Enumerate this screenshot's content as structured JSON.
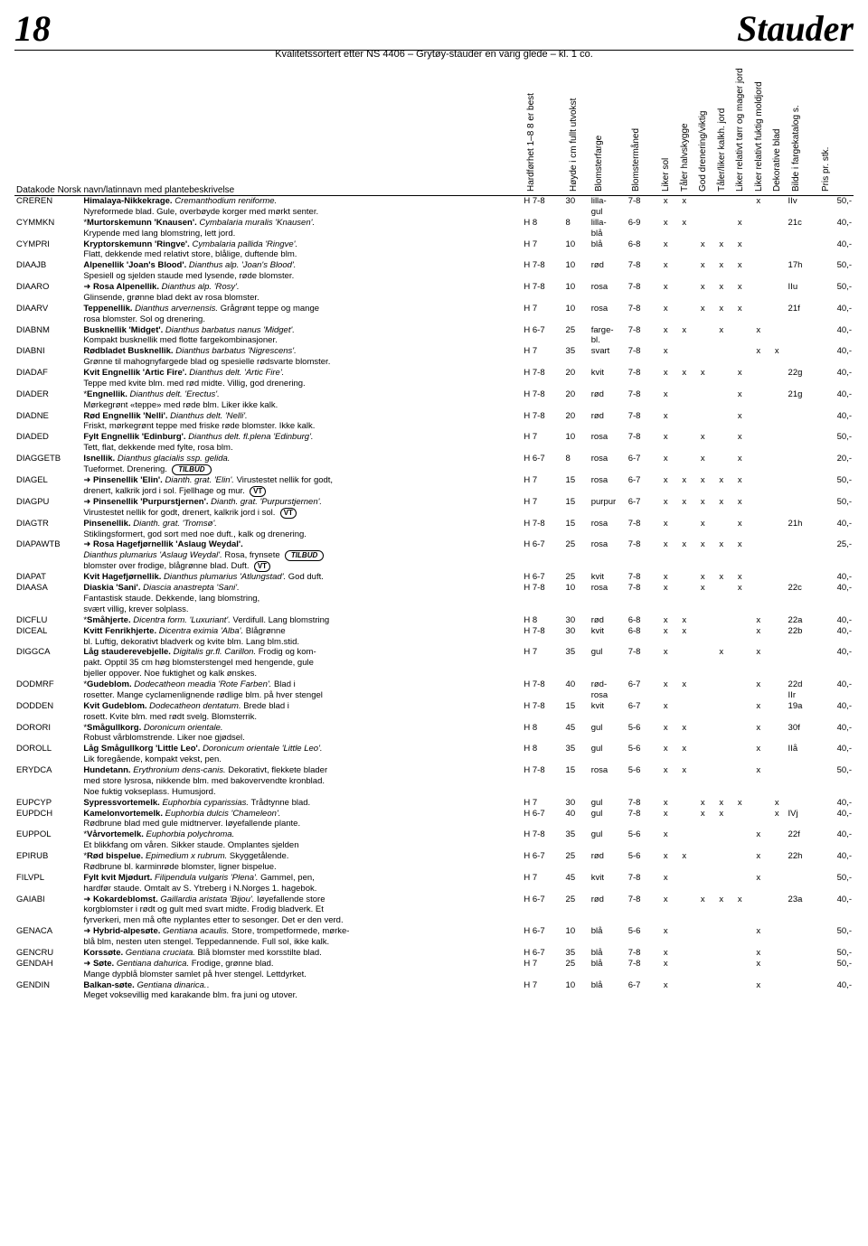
{
  "page_number": "18",
  "title": "Stauder",
  "subtitle": "Kvalitetssortert etter NS 4406 – Grytøy-stauder en varig glede – kl. 1 co.",
  "row_header_label": "Datakode   Norsk navn/latinnavn med plantebeskrivelse",
  "column_headers": [
    "Hardførhet 1–8\n8 er best",
    "Høyde i cm fullt\nutvokst",
    "Blomsterfarge",
    "Blomstermåned",
    "Liker sol",
    "Tåler halvskygge",
    "God drenering/viktig",
    "Tåler/liker kalkh. jord",
    "Liker relativt tørr og\nmager jord",
    "Liker relativt\nfuktig moldjord",
    "Dekorative blad",
    "Bilde i fargekatalog s.",
    "Pris pr. stk."
  ],
  "rows": [
    {
      "code": "CREREN",
      "desc": "<b>Himalaya-Nikkekrage.</b> <i>Cremanthodium reniforme.</i><br>Nyreformede blad. Gule, overbøyde korger med mørkt senter.",
      "h": "H 7-8",
      "ht": "30",
      "clr": "lilla-\ngul",
      "mon": "7-8",
      "x": [
        "x",
        "x",
        "",
        "",
        "",
        "x",
        "",
        ""
      ],
      "img": "IIv",
      "pr": "50,-"
    },
    {
      "code": "CYMMKN",
      "desc": "*<b>Murtorskemunn 'Knausen'.</b> <i>Cymbalaria muralis 'Knausen'.</i><br>Krypende med lang blomstring, lett jord.",
      "h": "H 8",
      "ht": "8",
      "clr": "lilla-\nblå",
      "mon": "6-9",
      "x": [
        "x",
        "x",
        "",
        "",
        "x",
        "",
        "",
        ""
      ],
      "img": "21c",
      "pr": "40,-"
    },
    {
      "code": "CYMPRI",
      "desc": "<b>Kryptorskemunn 'Ringve'.</b> <i>Cymbalaria pallida 'Ringve'.</i><br>Flatt, dekkende med relativt store, blålige, duftende blm.",
      "h": "H 7",
      "ht": "10",
      "clr": "blå",
      "mon": "6-8",
      "x": [
        "x",
        "",
        "x",
        "x",
        "x",
        "",
        "",
        ""
      ],
      "img": "",
      "pr": "40,-"
    },
    {
      "code": "DIAAJB",
      "desc": "<b>Alpenellik 'Joan's Blood'.</b> <i>Dianthus alp. 'Joan's Blood'.</i><br>Spesiell og sjelden staude med lysende, røde blomster.",
      "h": "H 7-8",
      "ht": "10",
      "clr": "rød",
      "mon": "7-8",
      "x": [
        "x",
        "",
        "x",
        "x",
        "x",
        "",
        "",
        ""
      ],
      "img": "17h",
      "pr": "50,-"
    },
    {
      "code": "DIAARO",
      "desc": "➜ <b>Rosa Alpenellik.</b> <i>Dianthus alp. 'Rosy'.</i><br>Glinsende, grønne blad dekt av rosa blomster.",
      "h": "H 7-8",
      "ht": "10",
      "clr": "rosa",
      "mon": "7-8",
      "x": [
        "x",
        "",
        "x",
        "x",
        "x",
        "",
        "",
        ""
      ],
      "img": "IIu",
      "pr": "50,-"
    },
    {
      "code": "DIAARV",
      "desc": "<b>Teppenellik.</b> <i>Dianthus arvernensis.</i> Grågrønt teppe og mange<br>rosa blomster. Sol og drenering.",
      "h": "H 7",
      "ht": "10",
      "clr": "rosa",
      "mon": "7-8",
      "x": [
        "x",
        "",
        "x",
        "x",
        "x",
        "",
        "",
        ""
      ],
      "img": "21f",
      "pr": "40,-"
    },
    {
      "code": "DIABNM",
      "desc": "<b>Busknellik 'Midget'.</b> <i>Dianthus barbatus nanus 'Midget'.</i><br>Kompakt busknellik med flotte fargekombinasjoner.",
      "h": "H 6-7",
      "ht": "25",
      "clr": "farge-\nbl.",
      "mon": "7-8",
      "x": [
        "x",
        "x",
        "",
        "x",
        "",
        "x",
        "",
        ""
      ],
      "img": "",
      "pr": "40,-"
    },
    {
      "code": "DIABNI",
      "desc": "<b>Rødbladet Busknellik.</b> <i>Dianthus barbatus 'Nigrescens'.</i><br>Grønne til mahognyfargede blad og spesielle rødsvarte blomster.",
      "h": "H 7",
      "ht": "35",
      "clr": "svart",
      "mon": "7-8",
      "x": [
        "x",
        "",
        "",
        "",
        "",
        "x",
        "x",
        ""
      ],
      "img": "",
      "pr": "40,-"
    },
    {
      "code": "DIADAF",
      "desc": "<b>Kvit Engnellik 'Artic Fire'.</b> <i>Dianthus delt. 'Artic Fire'.</i><br>Teppe med kvite blm. med rød midte. Villig, god drenering.",
      "h": "H 7-8",
      "ht": "20",
      "clr": "kvit",
      "mon": "7-8",
      "x": [
        "x",
        "x",
        "x",
        "",
        "x",
        "",
        "",
        ""
      ],
      "img": "22g",
      "pr": "40,-"
    },
    {
      "code": "DIADER",
      "desc": "*<b>Engnellik.</b> <i>Dianthus delt. 'Erectus'.</i><br>Mørkegrønt «teppe» med røde blm. Liker ikke kalk.",
      "h": "H 7-8",
      "ht": "20",
      "clr": "rød",
      "mon": "7-8",
      "x": [
        "x",
        "",
        "",
        "",
        "x",
        "",
        "",
        ""
      ],
      "img": "21g",
      "pr": "40,-"
    },
    {
      "code": "DIADNE",
      "desc": "<b>Rød Engnellik 'Nelli'.</b> <i>Dianthus delt. 'Nelli'.</i><br>Friskt, mørkegrønt teppe med friske røde blomster. Ikke kalk.",
      "h": "H 7-8",
      "ht": "20",
      "clr": "rød",
      "mon": "7-8",
      "x": [
        "x",
        "",
        "",
        "",
        "x",
        "",
        "",
        ""
      ],
      "img": "",
      "pr": "40,-"
    },
    {
      "code": "DIADED",
      "desc": "<b>Fylt Engnellik 'Edinburg'.</b> <i>Dianthus delt. fl.plena 'Edinburg'.</i><br>Tett, flat, dekkende med fylte, rosa blm.",
      "h": "H 7",
      "ht": "10",
      "clr": "rosa",
      "mon": "7-8",
      "x": [
        "x",
        "",
        "x",
        "",
        "x",
        "",
        "",
        ""
      ],
      "img": "",
      "pr": "50,-"
    },
    {
      "code": "DIAGGETB",
      "desc": "<b>Isnellik.</b> <i>Dianthus glacialis ssp. gelida.</i><br>Tueformet. Drenering. &nbsp;<span class='badge'>TILBUD</span>",
      "h": "H 6-7",
      "ht": "8",
      "clr": "rosa",
      "mon": "6-7",
      "x": [
        "x",
        "",
        "x",
        "",
        "x",
        "",
        "",
        ""
      ],
      "img": "",
      "pr": "20,-"
    },
    {
      "code": "DIAGEL",
      "desc": "➜ <b>Pinsenellik 'Elin'.</b> <i>Dianth. grat. 'Elin'.</i> Virustestet nellik for godt,<br>drenert, kalkrik jord i sol. Fjellhage og mur. &nbsp;<span class='vt'>VT</span>",
      "h": "H 7",
      "ht": "15",
      "clr": "rosa",
      "mon": "6-7",
      "x": [
        "x",
        "x",
        "x",
        "x",
        "x",
        "",
        "",
        ""
      ],
      "img": "",
      "pr": "50,-"
    },
    {
      "code": "DIAGPU",
      "desc": "➜ <b>Pinsenellik 'Purpurstjernen'.</b> <i>Dianth. grat. 'Purpurstjernen'.</i><br>Virustestet nellik for godt, drenert, kalkrik jord i sol. &nbsp;<span class='vt'>VT</span>",
      "h": "H 7",
      "ht": "15",
      "clr": "purpur",
      "mon": "6-7",
      "x": [
        "x",
        "x",
        "x",
        "x",
        "x",
        "",
        "",
        ""
      ],
      "img": "",
      "pr": "50,-"
    },
    {
      "code": "DIAGTR",
      "desc": "<b>Pinsenellik.</b> <i>Dianth. grat. 'Tromsø'.</i><br>Stiklingsformert, god sort med noe duft., kalk og drenering.",
      "h": "H 7-8",
      "ht": "15",
      "clr": "rosa",
      "mon": "7-8",
      "x": [
        "x",
        "",
        "x",
        "",
        "x",
        "",
        "",
        ""
      ],
      "img": "21h",
      "pr": "40,-"
    },
    {
      "code": "DIAPAWTB",
      "desc": "➜ <b>Rosa Hagefjørnellik 'Aslaug Weydal'.</b><br><i>Dianthus plumarius 'Aslaug Weydal'.</i> Rosa, frynsete &nbsp;<span class='badge'>TILBUD</span><br>blomster over frodige, blågrønne blad. Duft. &nbsp;<span class='vt'>VT</span>",
      "h": "H 6-7",
      "ht": "25",
      "clr": "rosa",
      "mon": "7-8",
      "x": [
        "x",
        "x",
        "x",
        "x",
        "x",
        "",
        "",
        ""
      ],
      "img": "",
      "pr": "25,-"
    },
    {
      "code": "DIAPAT",
      "desc": "<b>Kvit Hagefjørnellik.</b> <i>Dianthus plumarius 'Atlungstad'.</i> God duft.",
      "h": "H 6-7",
      "ht": "25",
      "clr": "kvit",
      "mon": "7-8",
      "x": [
        "x",
        "",
        "x",
        "x",
        "x",
        "",
        "",
        ""
      ],
      "img": "",
      "pr": "40,-"
    },
    {
      "code": "DIAASA",
      "desc": "<b>Diaskia 'Sani'.</b> <i>Diascia anastrepta 'Sani'.</i><br>Fantastisk staude. Dekkende, lang blomstring,<br>svært villig, krever solplass.",
      "h": "H 7-8",
      "ht": "10",
      "clr": "rosa",
      "mon": "7-8",
      "x": [
        "x",
        "",
        "x",
        "",
        "x",
        "",
        "",
        ""
      ],
      "img": "22c",
      "pr": "40,-"
    },
    {
      "code": "DICFLU",
      "desc": "*<b>Småhjerte.</b> <i>Dicentra form. 'Luxuriant'.</i> Verdifull. Lang blomstring",
      "h": "H 8",
      "ht": "30",
      "clr": "rød",
      "mon": "6-8",
      "x": [
        "x",
        "x",
        "",
        "",
        "",
        "x",
        "",
        ""
      ],
      "img": "22a",
      "pr": "40,-"
    },
    {
      "code": "DICEAL",
      "desc": "<b>Kvitt Fenrikhjerte.</b> <i>Dicentra eximia 'Alba'.</i> Blågrønne<br>bl. Luftig, dekorativt bladverk og kvite blm. Lang blm.stid.",
      "h": "H 7-8",
      "ht": "30",
      "clr": "kvit",
      "mon": "6-8",
      "x": [
        "x",
        "x",
        "",
        "",
        "",
        "x",
        "",
        ""
      ],
      "img": "22b",
      "pr": "40,-"
    },
    {
      "code": "DIGGCA",
      "desc": "<b>Låg stauderevebjelle.</b> <i>Digitalis gr.fl. Carillon.</i> Frodig og kom-<br>pakt. Opptil 35 cm høg blomsterstengel med hengende, gule<br>bjeller oppover. Noe fuktighet og kalk ønskes.",
      "h": "H 7",
      "ht": "35",
      "clr": "gul",
      "mon": "7-8",
      "x": [
        "x",
        "",
        "",
        "x",
        "",
        "x",
        "",
        ""
      ],
      "img": "",
      "pr": "40,-"
    },
    {
      "code": "DODMRF",
      "desc": "*<b>Gudeblom.</b> <i>Dodecatheon meadia 'Rote Farben'.</i> Blad i<br>rosetter. Mange cyclamenlignende rødlige blm. på hver stengel",
      "h": "H 7-8",
      "ht": "40",
      "clr": "rød-\nrosa",
      "mon": "6-7",
      "x": [
        "x",
        "x",
        "",
        "",
        "",
        "x",
        "",
        ""
      ],
      "img": "22d\nIIr",
      "pr": "40,-"
    },
    {
      "code": "DODDEN",
      "desc": "<b>Kvit Gudeblom.</b> <i>Dodecatheon dentatum.</i> Brede blad i<br>rosett. Kvite blm. med rødt svelg. Blomsterrik.",
      "h": "H 7-8",
      "ht": "15",
      "clr": "kvit",
      "mon": "6-7",
      "x": [
        "x",
        "",
        "",
        "",
        "",
        "x",
        "",
        ""
      ],
      "img": "19a",
      "pr": "40,-"
    },
    {
      "code": "DORORI",
      "desc": "*<b>Smågullkorg.</b> <i>Doronicum orientale.</i><br>Robust vårblomstrende. Liker noe gjødsel.",
      "h": "H 8",
      "ht": "45",
      "clr": "gul",
      "mon": "5-6",
      "x": [
        "x",
        "x",
        "",
        "",
        "",
        "x",
        "",
        ""
      ],
      "img": "30f",
      "pr": "40,-"
    },
    {
      "code": "DOROLL",
      "desc": "<b>Låg Smågullkorg 'Little Leo'.</b> <i>Doronicum orientale 'Little Leo'.</i><br>Lik foregående, kompakt vekst, pen.",
      "h": "H 8",
      "ht": "35",
      "clr": "gul",
      "mon": "5-6",
      "x": [
        "x",
        "x",
        "",
        "",
        "",
        "x",
        "",
        ""
      ],
      "img": "IIå",
      "pr": "40,-"
    },
    {
      "code": "ERYDCA",
      "desc": "<b>Hundetann.</b> <i>Erythronium dens-canis.</i> Dekorativt, flekkete blader<br>med store lysrosa, nikkende blm. med bakovervendte kronblad.<br>Noe fuktig vokseplass. Humusjord.",
      "h": "H 7-8",
      "ht": "15",
      "clr": "rosa",
      "mon": "5-6",
      "x": [
        "x",
        "x",
        "",
        "",
        "",
        "x",
        "",
        ""
      ],
      "img": "",
      "pr": "50,-"
    },
    {
      "code": "EUPCYP",
      "desc": "<b>Sypressvortemelk.</b> <i>Euphorbia cyparissias.</i> Trådtynne blad.",
      "h": "H 7",
      "ht": "30",
      "clr": "gul",
      "mon": "7-8",
      "x": [
        "x",
        "",
        "x",
        "x",
        "x",
        "",
        "x",
        ""
      ],
      "img": "",
      "pr": "40,-"
    },
    {
      "code": "EUPDCH",
      "desc": "<b>Kamelonvortemelk.</b> <i>Euphorbia dulcis 'Chameleon'.</i><br>Rødbrune blad med gule midtnerver. Iøyefallende plante.",
      "h": "H 6-7",
      "ht": "40",
      "clr": "gul",
      "mon": "7-8",
      "x": [
        "x",
        "",
        "x",
        "x",
        "",
        "",
        "x",
        ""
      ],
      "img": "IVj",
      "pr": "40,-"
    },
    {
      "code": "EUPPOL",
      "desc": "*<b>Vårvortemelk.</b> <i>Euphorbia polychroma.</i><br>Et blikkfang om våren. Sikker staude. Omplantes sjelden",
      "h": "H 7-8",
      "ht": "35",
      "clr": "gul",
      "mon": "5-6",
      "x": [
        "x",
        "",
        "",
        "",
        "",
        "x",
        "",
        ""
      ],
      "img": "22f",
      "pr": "40,-"
    },
    {
      "code": "EPIRUB",
      "desc": "*<b>Rød bispelue.</b> <i>Epimedium x rubrum.</i> Skyggetålende.<br>Rødbrune bl. karminrøde blomster, ligner bispelue.",
      "h": "H 6-7",
      "ht": "25",
      "clr": "rød",
      "mon": "5-6",
      "x": [
        "x",
        "x",
        "",
        "",
        "",
        "x",
        "",
        ""
      ],
      "img": "22h",
      "pr": "40,-"
    },
    {
      "code": "FILVPL",
      "desc": "<b>Fylt kvit Mjødurt.</b> <i>Filipendula vulgaris 'Plena'.</i> Gammel, pen,<br>hardfør staude. Omtalt av S. Ytreberg i N.Norges 1. hagebok.",
      "h": "H 7",
      "ht": "45",
      "clr": "kvit",
      "mon": "7-8",
      "x": [
        "x",
        "",
        "",
        "",
        "",
        "x",
        "",
        ""
      ],
      "img": "",
      "pr": "50,-"
    },
    {
      "code": "GAIABI",
      "desc": "➜ <b>Kokardeblomst.</b> <i>Gaillardia aristata 'Bijou'.</i> Iøyefallende store<br>korgblomster i rødt og gult med svart midte. Frodig bladverk. Et<br>fyrverkeri, men må ofte nyplantes etter to sesonger. Det er den verd.",
      "h": "H 6-7",
      "ht": "25",
      "clr": "rød",
      "mon": "7-8",
      "x": [
        "x",
        "",
        "x",
        "x",
        "x",
        "",
        "",
        ""
      ],
      "img": "23a",
      "pr": "40,-"
    },
    {
      "code": "GENACA",
      "desc": "➜ <b>Hybrid-alpesøte.</b> <i>Gentiana acaulis.</i> Store, trompetformede, mørke-<br>blå blm, nesten uten stengel. Teppedannende. Full sol, ikke kalk.",
      "h": "H 6-7",
      "ht": "10",
      "clr": "blå",
      "mon": "5-6",
      "x": [
        "x",
        "",
        "",
        "",
        "",
        "x",
        "",
        ""
      ],
      "img": "",
      "pr": "50,-"
    },
    {
      "code": "GENCRU",
      "desc": "<b>Korssøte.</b> <i>Gentiana cruciata.</i> Blå blomster med korsstilte blad.",
      "h": "H 6-7",
      "ht": "35",
      "clr": "blå",
      "mon": "7-8",
      "x": [
        "x",
        "",
        "",
        "",
        "",
        "x",
        "",
        ""
      ],
      "img": "",
      "pr": "50,-"
    },
    {
      "code": "GENDAH",
      "desc": "➜ <b>Søte.</b> <i>Gentiana dahurica.</i> Frodige, grønne blad.<br>Mange dypblå blomster samlet på hver stengel. Lettdyrket.",
      "h": "H 7",
      "ht": "25",
      "clr": "blå",
      "mon": "7-8",
      "x": [
        "x",
        "",
        "",
        "",
        "",
        "x",
        "",
        ""
      ],
      "img": "",
      "pr": "50,-"
    },
    {
      "code": "GENDIN",
      "desc": "<b>Balkan-søte.</b> <i>Gentiana dinarica.</i>.<br>Meget voksevillig med karakande blm. fra juni og utover.",
      "h": "H 7",
      "ht": "10",
      "clr": "blå",
      "mon": "6-7",
      "x": [
        "x",
        "",
        "",
        "",
        "",
        "x",
        "",
        ""
      ],
      "img": "",
      "pr": "40,-"
    }
  ]
}
